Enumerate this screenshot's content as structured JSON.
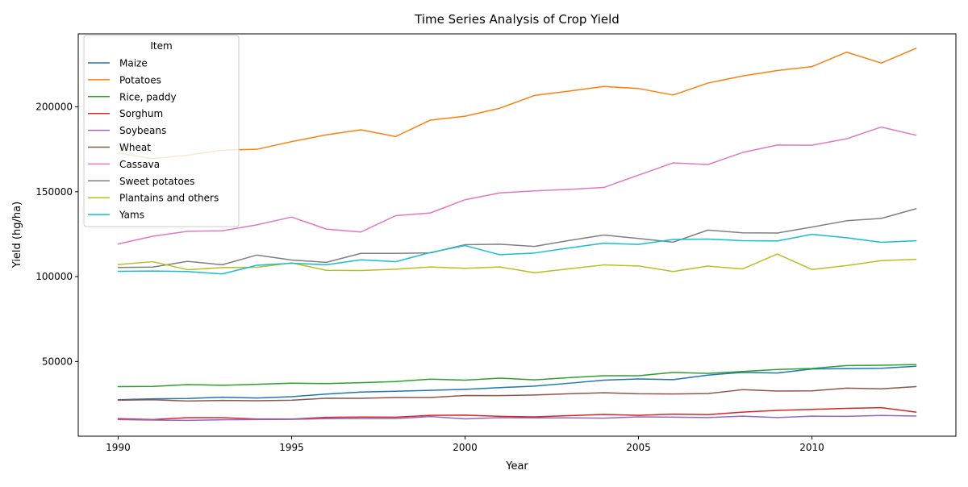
{
  "chart_data": {
    "type": "line",
    "title": "Time Series Analysis of Crop Yield",
    "xlabel": "Year",
    "ylabel": "Yield (hg/ha)",
    "xlim": [
      1988.85,
      2014.15
    ],
    "ylim": [
      6000,
      243000
    ],
    "xticks": [
      1990,
      1995,
      2000,
      2005,
      2010
    ],
    "yticks": [
      50000,
      100000,
      150000,
      200000
    ],
    "grid": false,
    "legend": {
      "title": "Item",
      "position": "top-left"
    },
    "x": [
      1990,
      1991,
      1992,
      1993,
      1994,
      1995,
      1996,
      1997,
      1998,
      1999,
      2000,
      2001,
      2002,
      2003,
      2004,
      2005,
      2006,
      2007,
      2008,
      2009,
      2010,
      2011,
      2012,
      2013
    ],
    "series": [
      {
        "name": "Maize",
        "color": "#1f77b4",
        "values": [
          27500,
          28000,
          28200,
          29000,
          28500,
          29300,
          30800,
          32000,
          32500,
          33000,
          33600,
          34600,
          35500,
          37200,
          39000,
          39700,
          39300,
          42000,
          43600,
          43200,
          45600,
          45800,
          46000,
          47200
        ]
      },
      {
        "name": "Potatoes",
        "color": "#ff7f0e",
        "values": [
          172700,
          169500,
          171500,
          174500,
          175000,
          179500,
          183500,
          186500,
          182500,
          192200,
          194500,
          199200,
          206700,
          209300,
          212000,
          210800,
          207000,
          214000,
          218200,
          221400,
          223700,
          232200,
          225800,
          234500
        ]
      },
      {
        "name": "Rice, paddy",
        "color": "#2ca02c",
        "values": [
          35200,
          35300,
          36400,
          36000,
          36600,
          37200,
          37000,
          37500,
          38200,
          39600,
          39000,
          40200,
          39200,
          40500,
          41600,
          41600,
          43600,
          43000,
          44100,
          45300,
          45900,
          47600,
          47800,
          48200
        ]
      },
      {
        "name": "Sorghum",
        "color": "#d62728",
        "values": [
          16300,
          15800,
          16900,
          16900,
          16100,
          16100,
          17100,
          17300,
          17200,
          18300,
          18400,
          17700,
          17400,
          18100,
          18800,
          18300,
          19000,
          18700,
          20200,
          21200,
          21800,
          22400,
          22800,
          20200
        ]
      },
      {
        "name": "Soybeans",
        "color": "#9467bd",
        "values": [
          15800,
          15500,
          15300,
          15700,
          15800,
          15900,
          16300,
          16400,
          16400,
          17600,
          16200,
          16900,
          16800,
          16800,
          16600,
          17400,
          17200,
          17000,
          17800,
          17000,
          17800,
          17700,
          18200,
          17900
        ]
      },
      {
        "name": "Wheat",
        "color": "#8c564b",
        "values": [
          27200,
          27500,
          26700,
          27100,
          26900,
          27200,
          28400,
          28300,
          28800,
          28800,
          30000,
          29900,
          30300,
          31000,
          31600,
          31000,
          30900,
          31100,
          33400,
          32600,
          32700,
          34300,
          33900,
          35200
        ]
      },
      {
        "name": "Cassava",
        "color": "#e377c2",
        "values": [
          119200,
          123800,
          126700,
          127000,
          130500,
          135100,
          128000,
          126300,
          135900,
          137500,
          145300,
          149300,
          150500,
          151400,
          152500,
          159800,
          167000,
          166000,
          173100,
          177500,
          177400,
          181200,
          188100,
          183300
        ]
      },
      {
        "name": "Sweet potatoes",
        "color": "#7f7f7f",
        "values": [
          105400,
          105600,
          109000,
          107000,
          112700,
          109800,
          108400,
          113700,
          113700,
          114000,
          118800,
          119100,
          117800,
          121300,
          124500,
          122500,
          120300,
          127400,
          125800,
          125700,
          129200,
          132900,
          134300,
          140000
        ]
      },
      {
        "name": "Plantains and others",
        "color": "#bcbd22",
        "values": [
          107100,
          108800,
          104100,
          105300,
          105500,
          108100,
          103700,
          103600,
          104400,
          105700,
          104900,
          105700,
          102300,
          104600,
          106900,
          106300,
          103000,
          106200,
          104500,
          113300,
          104200,
          106500,
          109400,
          110200
        ]
      },
      {
        "name": "Yams",
        "color": "#17becf",
        "values": [
          103100,
          103300,
          103000,
          101600,
          106700,
          107900,
          107000,
          109900,
          108800,
          114200,
          118300,
          112900,
          113900,
          116900,
          119700,
          119000,
          121900,
          122100,
          121200,
          121000,
          124900,
          122900,
          120200,
          121100
        ]
      }
    ]
  }
}
